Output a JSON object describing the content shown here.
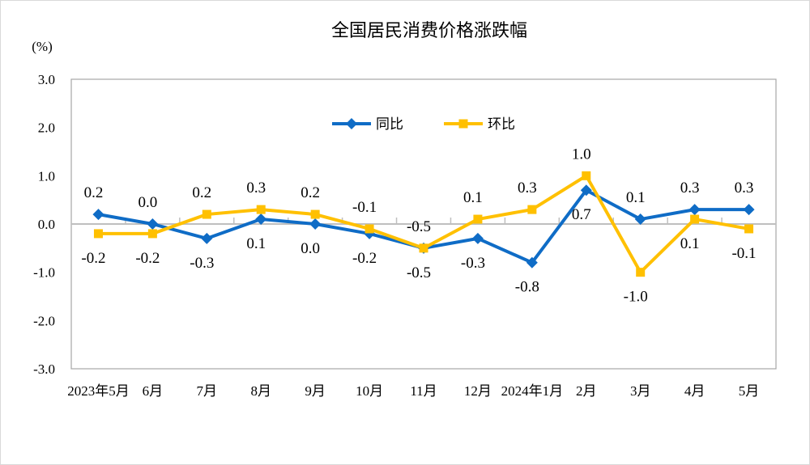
{
  "chart_data": {
    "type": "line",
    "title": "全国居民消费价格涨跌幅",
    "ylabel": "(%)",
    "xlabel": "",
    "ylim": [
      -3.0,
      3.0
    ],
    "yticks": [
      "3.0",
      "2.0",
      "1.0",
      "0.0",
      "-1.0",
      "-2.0",
      "-3.0"
    ],
    "categories": [
      "2023年5月",
      "6月",
      "7月",
      "8月",
      "9月",
      "10月",
      "11月",
      "12月",
      "2024年1月",
      "2月",
      "3月",
      "4月",
      "5月"
    ],
    "legend_position": "top-center",
    "grid": false,
    "series": [
      {
        "name": "同比",
        "color": "#0F6CC6",
        "marker": "diamond",
        "values": [
          0.2,
          0.0,
          -0.3,
          0.1,
          0.0,
          -0.2,
          -0.5,
          -0.3,
          -0.8,
          0.7,
          0.1,
          0.3,
          0.3
        ]
      },
      {
        "name": "环比",
        "color": "#FFC000",
        "marker": "square",
        "values": [
          -0.2,
          -0.2,
          0.2,
          0.3,
          0.2,
          -0.1,
          -0.5,
          0.1,
          0.3,
          1.0,
          -1.0,
          0.1,
          -0.1
        ]
      }
    ]
  }
}
